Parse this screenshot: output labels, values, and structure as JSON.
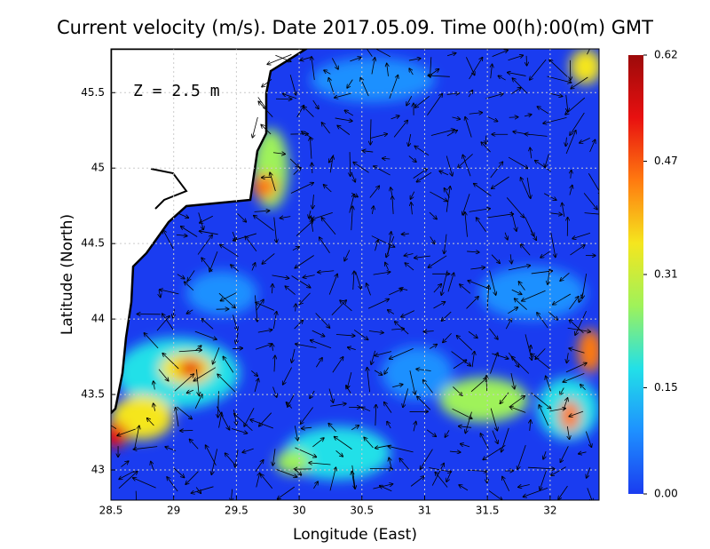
{
  "title": "Current velocity (m/s). Date 2017.05.09. Time 00(h):00(m) GMT",
  "annotation": "Z = 2.5 m",
  "xlabel": "Longitude (East)",
  "ylabel": "Latitude (North)",
  "xlim": [
    28.5,
    32.39
  ],
  "ylim": [
    42.8,
    45.79
  ],
  "xticks": [
    28.5,
    29,
    29.5,
    30,
    30.5,
    31,
    31.5,
    32
  ],
  "yticks": [
    43,
    43.5,
    44,
    44.5,
    45,
    45.5
  ],
  "grid": true,
  "colorbar": {
    "lim": [
      0,
      0.62
    ],
    "ticks": [
      {
        "value": 0,
        "label": "0.00"
      },
      {
        "value": 0.15,
        "label": "0.15"
      },
      {
        "value": 0.31,
        "label": "0.31"
      },
      {
        "value": 0.47,
        "label": "0.47"
      },
      {
        "value": 0.62,
        "label": "0.62"
      }
    ],
    "colors": [
      "#1a3cf0",
      "#1e90ff",
      "#22e0e8",
      "#9ff25a",
      "#f5e61e",
      "#ff7a10",
      "#e81010",
      "#9c0a0a"
    ]
  }
}
